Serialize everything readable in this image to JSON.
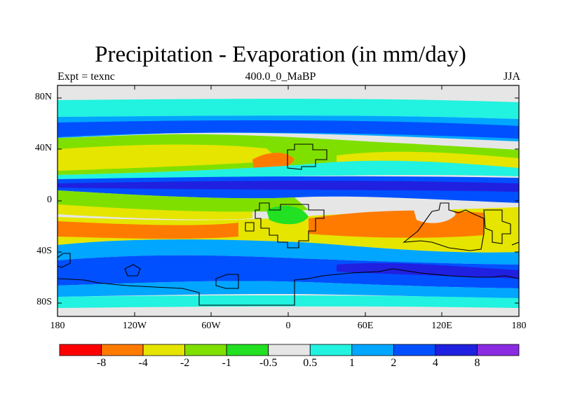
{
  "title": "Precipitation - Evaporation (in mm/day)",
  "subtitle_left": "Expt = texnc",
  "subtitle_center": "400.0_0_MaBP",
  "subtitle_right": "JJA",
  "lat_ticks": [
    "80N",
    "40N",
    "0",
    "40S",
    "80S"
  ],
  "lon_ticks": [
    "180",
    "120W",
    "60W",
    "0",
    "60E",
    "120E",
    "180"
  ],
  "colorbar": {
    "labels": [
      "-8",
      "-4",
      "-2",
      "-1",
      "-0.5",
      "0.5",
      "1",
      "2",
      "4",
      "8"
    ],
    "colors": [
      "#ff0000",
      "#ff7b00",
      "#e5e500",
      "#7fe000",
      "#22e022",
      "#e6e6e6",
      "#22f2e0",
      "#00a6ff",
      "#0050ff",
      "#2020e0",
      "#8a2be2"
    ]
  }
}
